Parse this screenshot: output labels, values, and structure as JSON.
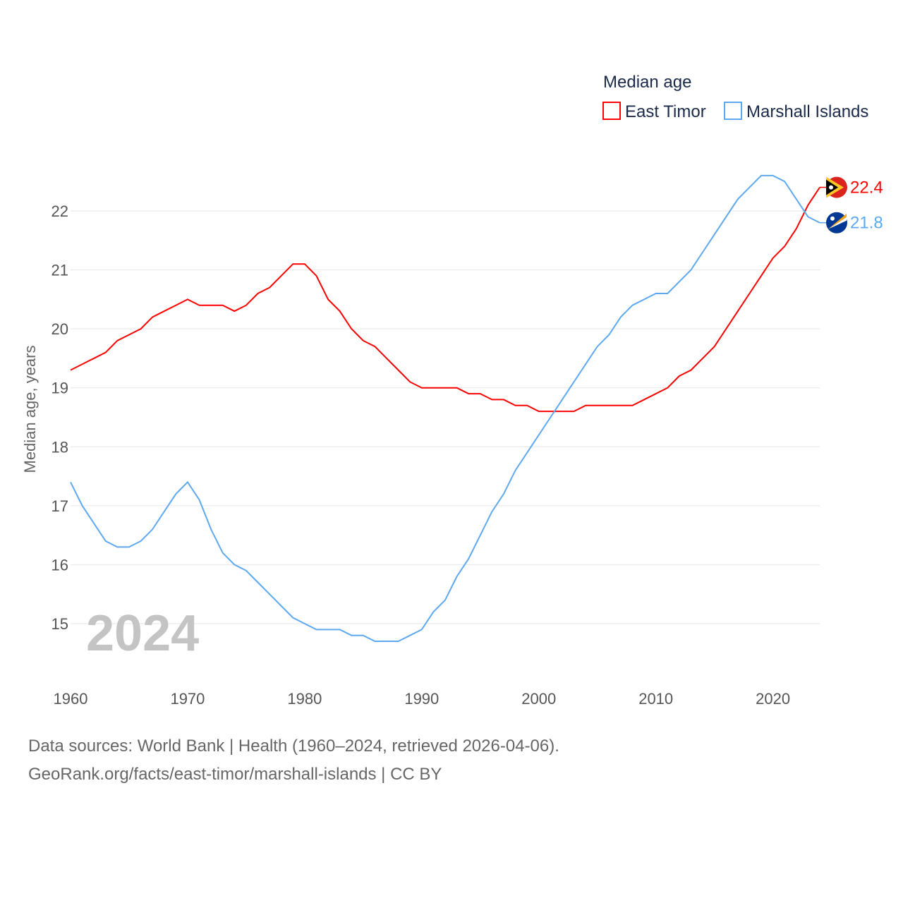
{
  "chart_data": {
    "type": "line",
    "legend_title": "Median age",
    "ylabel": "Median age, years",
    "year_label": "2024",
    "x": [
      1960,
      1961,
      1962,
      1963,
      1964,
      1965,
      1966,
      1967,
      1968,
      1969,
      1970,
      1971,
      1972,
      1973,
      1974,
      1975,
      1976,
      1977,
      1978,
      1979,
      1980,
      1981,
      1982,
      1983,
      1984,
      1985,
      1986,
      1987,
      1988,
      1989,
      1990,
      1991,
      1992,
      1993,
      1994,
      1995,
      1996,
      1997,
      1998,
      1999,
      2000,
      2001,
      2002,
      2003,
      2004,
      2005,
      2006,
      2007,
      2008,
      2009,
      2010,
      2011,
      2012,
      2013,
      2014,
      2015,
      2016,
      2017,
      2018,
      2019,
      2020,
      2021,
      2022,
      2023,
      2024
    ],
    "xlim": [
      1960,
      2024
    ],
    "ylim": [
      14.3,
      22.8
    ],
    "xticks": [
      1960,
      1970,
      1980,
      1990,
      2000,
      2010,
      2020
    ],
    "yticks": [
      15,
      16,
      17,
      18,
      19,
      20,
      21,
      22
    ],
    "grid": true,
    "legend_position": "top-right",
    "series": [
      {
        "name": "East Timor",
        "color": "#ff0000",
        "end_label": "22.4",
        "values": [
          19.3,
          19.4,
          19.5,
          19.6,
          19.8,
          19.9,
          20.0,
          20.2,
          20.3,
          20.4,
          20.5,
          20.4,
          20.4,
          20.4,
          20.3,
          20.4,
          20.6,
          20.7,
          20.9,
          21.1,
          21.1,
          20.9,
          20.5,
          20.3,
          20.0,
          19.8,
          19.7,
          19.5,
          19.3,
          19.1,
          19.0,
          19.0,
          19.0,
          19.0,
          18.9,
          18.9,
          18.8,
          18.8,
          18.7,
          18.7,
          18.6,
          18.6,
          18.6,
          18.6,
          18.7,
          18.7,
          18.7,
          18.7,
          18.7,
          18.8,
          18.9,
          19.0,
          19.2,
          19.3,
          19.5,
          19.7,
          20.0,
          20.3,
          20.6,
          20.9,
          21.2,
          21.4,
          21.7,
          22.1,
          22.4
        ]
      },
      {
        "name": "Marshall Islands",
        "color": "#5ea8f0",
        "end_label": "21.8",
        "values": [
          17.4,
          17.0,
          16.7,
          16.4,
          16.3,
          16.3,
          16.4,
          16.6,
          16.9,
          17.2,
          17.4,
          17.1,
          16.6,
          16.2,
          16.0,
          15.9,
          15.7,
          15.5,
          15.3,
          15.1,
          15.0,
          14.9,
          14.9,
          14.9,
          14.8,
          14.8,
          14.7,
          14.7,
          14.7,
          14.8,
          14.9,
          15.2,
          15.4,
          15.8,
          16.1,
          16.5,
          16.9,
          17.2,
          17.6,
          17.9,
          18.2,
          18.5,
          18.8,
          19.1,
          19.4,
          19.7,
          19.9,
          20.2,
          20.4,
          20.5,
          20.6,
          20.6,
          20.8,
          21.0,
          21.3,
          21.6,
          21.9,
          22.2,
          22.4,
          22.6,
          22.6,
          22.5,
          22.2,
          21.9,
          21.8
        ]
      }
    ]
  },
  "footer": {
    "line1": "Data sources: World Bank | Health (1960–2024, retrieved 2026-04-06).",
    "line2": "GeoRank.org/facts/east-timor/marshall-islands | CC BY"
  }
}
